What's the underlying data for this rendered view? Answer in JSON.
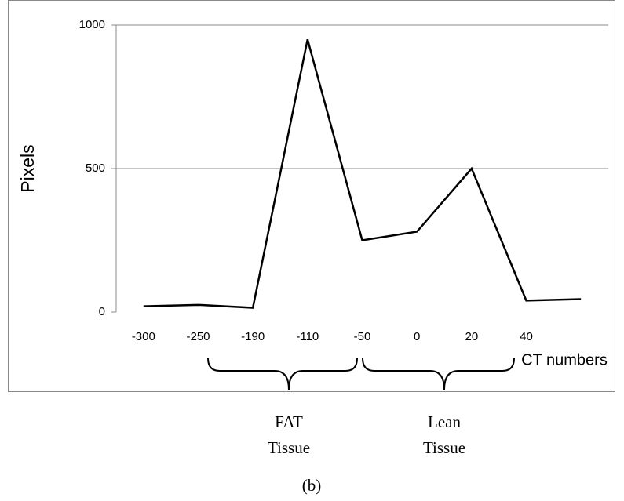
{
  "chart_data": {
    "type": "line",
    "ylabel": "Pixels",
    "xlabel": "CT numbers",
    "categories": [
      "-300",
      "-250",
      "-190",
      "-110",
      "-50",
      "0",
      "20",
      "40",
      null
    ],
    "series": [
      {
        "name": "Pixels",
        "color": "#000000",
        "values": [
          20,
          25,
          15,
          950,
          250,
          280,
          500,
          40,
          45
        ]
      }
    ],
    "ylim": [
      0,
      1000
    ],
    "yticks": [
      0,
      500,
      1000
    ],
    "grid": true,
    "annotations": [
      [
        "FAT",
        "Tissue"
      ],
      [
        "Lean",
        "Tissue"
      ]
    ],
    "caption": "(b)"
  }
}
